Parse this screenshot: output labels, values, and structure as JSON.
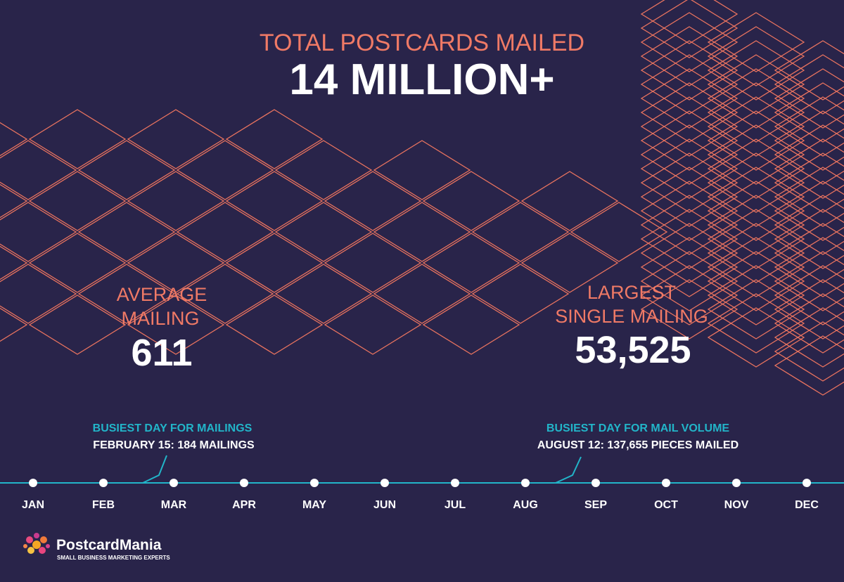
{
  "header": {
    "label": "TOTAL POSTCARDS MAILED",
    "value": "14 MILLION+"
  },
  "stats": [
    {
      "label_lines": [
        "AVERAGE",
        "MAILING"
      ],
      "value": "611"
    },
    {
      "label_lines": [
        "LARGEST",
        "SINGLE MAILING"
      ],
      "value": "53,525"
    }
  ],
  "timeline": {
    "months": [
      "JAN",
      "FEB",
      "MAR",
      "APR",
      "MAY",
      "JUN",
      "JUL",
      "AUG",
      "SEP",
      "OCT",
      "NOV",
      "DEC"
    ],
    "callouts": [
      {
        "title": "BUSIEST DAY FOR MAILINGS",
        "detail": "FEBRUARY 15: 184 MAILINGS"
      },
      {
        "title": "BUSIEST DAY FOR MAIL VOLUME",
        "detail": "AUGUST 12: 137,655 PIECES MAILED"
      }
    ]
  },
  "logo": {
    "name": "PostcardMania",
    "tagline": "SMALL BUSINESS MARKETING EXPERTS"
  }
}
